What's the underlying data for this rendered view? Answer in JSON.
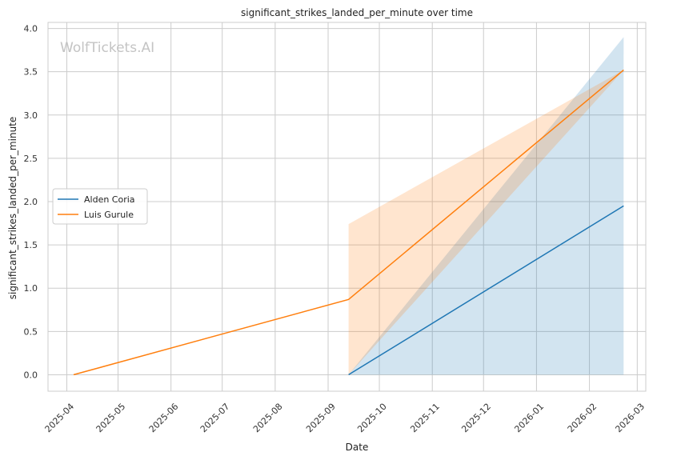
{
  "chart_data": {
    "type": "line",
    "title": "significant_strikes_landed_per_minute over time",
    "xlabel": "Date",
    "ylabel": "significant_strikes_landed_per_minute",
    "watermark": "WolfTickets.AI",
    "x_ticks": [
      "2025-04",
      "2025-05",
      "2025-06",
      "2025-07",
      "2025-08",
      "2025-09",
      "2025-10",
      "2025-11",
      "2025-12",
      "2026-01",
      "2026-02",
      "2026-03"
    ],
    "y_ticks": [
      "0.0",
      "0.5",
      "1.0",
      "1.5",
      "2.0",
      "2.5",
      "3.0",
      "3.5",
      "4.0"
    ],
    "ylim": [
      -0.19,
      4.07
    ],
    "xlim": [
      "2025-03-21",
      "2026-03-06"
    ],
    "grid": true,
    "legend_position": "center-left",
    "series": [
      {
        "name": "Alden Coria",
        "color": "#1f77b4",
        "points": [
          {
            "x": "2025-09-13",
            "y": 0.0
          },
          {
            "x": "2026-02-21",
            "y": 1.95
          }
        ],
        "band": [
          {
            "x": "2025-09-13",
            "low": 0.0,
            "high": 0.0
          },
          {
            "x": "2026-02-21",
            "low": 0.0,
            "high": 3.9
          }
        ]
      },
      {
        "name": "Luis Gurule",
        "color": "#ff7f0e",
        "points": [
          {
            "x": "2025-04-05",
            "y": 0.0
          },
          {
            "x": "2025-09-13",
            "y": 0.87
          },
          {
            "x": "2026-02-21",
            "y": 3.52
          }
        ],
        "band": [
          {
            "x": "2025-09-13",
            "low": 0.0,
            "high": 1.74
          },
          {
            "x": "2026-02-21",
            "low": 3.52,
            "high": 3.52
          }
        ]
      }
    ]
  }
}
